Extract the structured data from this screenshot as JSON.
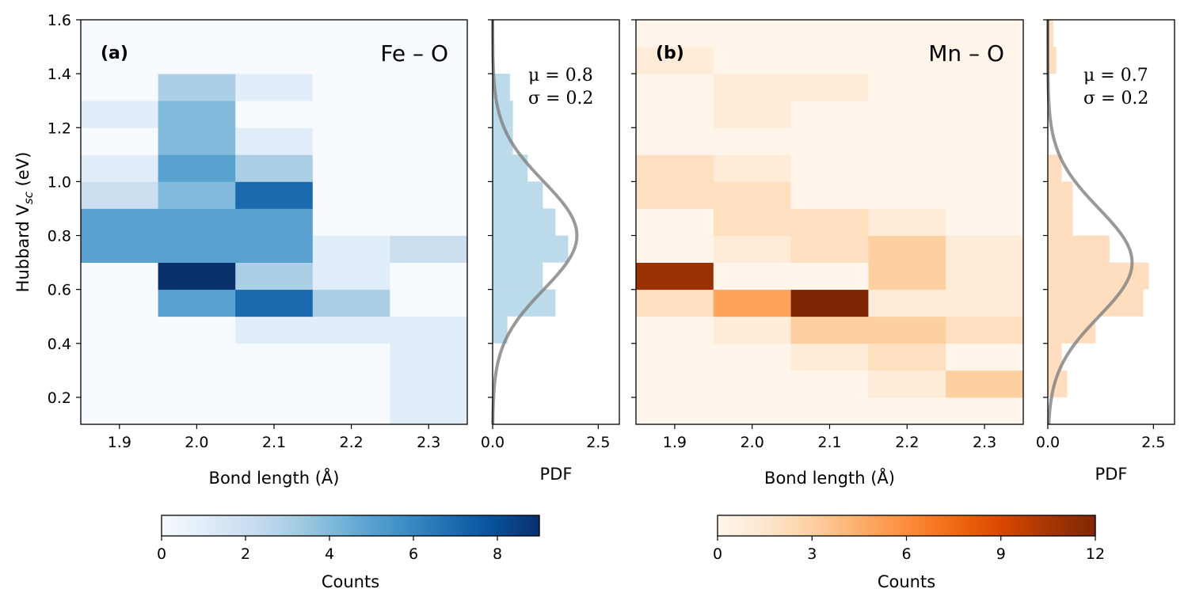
{
  "chart_data": [
    {
      "type": "heatmap",
      "panel_label": "(a)",
      "pair": "Fe – O",
      "xlabel": "Bond length (Å)",
      "ylabel": "Hubbard V",
      "ylabel_subscript": "sc",
      "ylabel_unit": " (eV)",
      "xlim": [
        1.85,
        2.35
      ],
      "ylim": [
        0.1,
        1.6
      ],
      "xticks": [
        "1.9",
        "2.0",
        "2.1",
        "2.2",
        "2.3"
      ],
      "yticks": [
        "0.2",
        "0.4",
        "0.6",
        "0.8",
        "1.0",
        "1.2",
        "1.4",
        "1.6"
      ],
      "x_bin_edges": [
        1.85,
        1.95,
        2.05,
        2.15,
        2.25,
        2.35
      ],
      "y_bin_edges": [
        0.1,
        0.2,
        0.3,
        0.4,
        0.5,
        0.6,
        0.7,
        0.8,
        0.9,
        1.0,
        1.1,
        1.2,
        1.3,
        1.4,
        1.5,
        1.6
      ],
      "counts": [
        [
          0,
          0,
          0,
          0,
          1
        ],
        [
          0,
          0,
          0,
          0,
          1
        ],
        [
          0,
          0,
          0,
          0,
          1
        ],
        [
          0,
          0,
          1,
          1,
          1
        ],
        [
          0,
          5,
          7,
          3,
          0
        ],
        [
          0,
          9,
          3,
          1,
          0
        ],
        [
          5,
          5,
          5,
          1,
          2
        ],
        [
          5,
          5,
          5,
          0,
          0
        ],
        [
          2,
          4,
          7,
          0,
          0
        ],
        [
          1,
          5,
          3,
          0,
          0
        ],
        [
          0,
          4,
          1,
          0,
          0
        ],
        [
          1,
          4,
          0,
          0,
          0
        ],
        [
          0,
          3,
          1,
          0,
          0
        ],
        [
          0,
          0,
          0,
          0,
          0
        ],
        [
          0,
          0,
          0,
          0,
          0
        ]
      ],
      "colormap": "Blues",
      "colorbar": {
        "label": "Counts",
        "range": [
          0,
          9
        ],
        "ticks": [
          0,
          2,
          4,
          6,
          8
        ]
      }
    },
    {
      "type": "bar",
      "orientation": "horizontal",
      "xlabel": "PDF",
      "xlim": [
        0,
        3.0
      ],
      "xticks": [
        "0.0",
        "2.5"
      ],
      "ylim": [
        0.1,
        1.6
      ],
      "bin_edges": [
        0.1,
        0.2,
        0.3,
        0.4,
        0.5,
        0.6,
        0.7,
        0.8,
        0.9,
        1.0,
        1.1,
        1.2,
        1.3,
        1.4,
        1.5,
        1.6
      ],
      "values": [
        0.0,
        0.0,
        0.0,
        0.35,
        1.49,
        1.19,
        1.79,
        1.49,
        1.19,
        0.83,
        0.48,
        0.48,
        0.41,
        0.0,
        0.0
      ],
      "bar_color": "#9ecae1",
      "fit": {
        "mu": 0.8,
        "sigma": 0.2,
        "text_mu": "μ = 0.8",
        "text_sigma": "σ = 0.2",
        "color": "#7f7f7f"
      }
    },
    {
      "type": "heatmap",
      "panel_label": "(b)",
      "pair": "Mn – O",
      "xlabel": "Bond length (Å)",
      "xlim": [
        1.85,
        2.35
      ],
      "ylim": [
        0.1,
        1.6
      ],
      "xticks": [
        "1.9",
        "2.0",
        "2.1",
        "2.2",
        "2.3"
      ],
      "x_bin_edges": [
        1.85,
        1.95,
        2.05,
        2.15,
        2.25,
        2.35
      ],
      "y_bin_edges": [
        0.1,
        0.2,
        0.3,
        0.4,
        0.5,
        0.6,
        0.7,
        0.8,
        0.9,
        1.0,
        1.1,
        1.2,
        1.3,
        1.4,
        1.5,
        1.6
      ],
      "counts": [
        [
          0,
          0,
          0,
          0,
          0
        ],
        [
          0,
          0,
          0,
          1,
          3
        ],
        [
          0,
          0,
          1,
          2,
          0
        ],
        [
          0,
          1,
          3,
          3,
          2
        ],
        [
          2,
          5,
          12,
          1,
          1
        ],
        [
          11,
          0,
          0,
          3,
          1
        ],
        [
          0,
          1,
          2,
          3,
          1
        ],
        [
          0,
          2,
          2,
          1,
          0
        ],
        [
          2,
          2,
          0,
          0,
          0
        ],
        [
          2,
          1,
          0,
          0,
          0
        ],
        [
          0,
          0,
          0,
          0,
          0
        ],
        [
          0,
          1,
          0,
          0,
          0
        ],
        [
          0,
          1,
          1,
          0,
          0
        ],
        [
          1,
          0,
          0,
          0,
          0
        ],
        [
          0,
          0,
          0,
          0,
          0
        ]
      ],
      "colormap": "Oranges",
      "colorbar": {
        "label": "Counts",
        "range": [
          0,
          12
        ],
        "ticks": [
          0,
          3,
          6,
          9,
          12
        ]
      }
    },
    {
      "type": "bar",
      "orientation": "horizontal",
      "xlabel": "PDF",
      "xlim": [
        0,
        3.0
      ],
      "xticks": [
        "0.0",
        "2.5"
      ],
      "ylim": [
        0.1,
        1.6
      ],
      "bin_edges": [
        0.1,
        0.2,
        0.3,
        0.4,
        0.5,
        0.6,
        0.7,
        0.8,
        0.9,
        1.0,
        1.1,
        1.2,
        1.3,
        1.4,
        1.5,
        1.6
      ],
      "values": [
        0.0,
        0.46,
        0.33,
        1.13,
        2.26,
        2.39,
        1.46,
        0.59,
        0.59,
        0.33,
        0.0,
        0.0,
        0.0,
        0.2,
        0.13
      ],
      "bar_color": "#fdd0a2",
      "fit": {
        "mu": 0.7,
        "sigma": 0.2,
        "text_mu": "μ = 0.7",
        "text_sigma": "σ = 0.2",
        "color": "#7f7f7f"
      }
    }
  ]
}
